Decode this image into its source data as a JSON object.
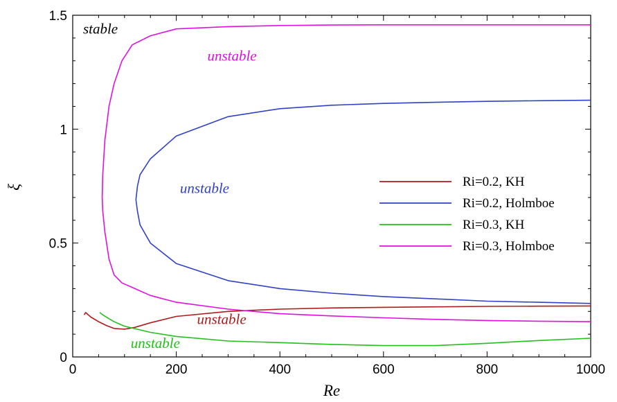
{
  "chart_data": {
    "type": "line",
    "xlabel": "Re",
    "ylabel": "ξ",
    "xlim": [
      0,
      1000
    ],
    "ylim": [
      0,
      1.5
    ],
    "xticks": [
      "0",
      "200",
      "400",
      "600",
      "800",
      "1000"
    ],
    "yticks": [
      "0",
      "0.5",
      "1",
      "1.5"
    ],
    "grid": false,
    "legend_position": "center-right",
    "series": [
      {
        "name": "Ri=0.2, KH",
        "color": "#b01a1a",
        "x": [
          22,
          25,
          35,
          50,
          65,
          80,
          100,
          120,
          150,
          200,
          300,
          400,
          500,
          600,
          700,
          800,
          900,
          1000
        ],
        "y": [
          0.185,
          0.195,
          0.175,
          0.155,
          0.138,
          0.125,
          0.122,
          0.13,
          0.15,
          0.178,
          0.2,
          0.21,
          0.215,
          0.218,
          0.22,
          0.222,
          0.223,
          0.224
        ]
      },
      {
        "name": "Ri=0.2, Holmboe",
        "color": "#3040c8",
        "x": [
          1000,
          900,
          800,
          700,
          600,
          500,
          400,
          300,
          200,
          150,
          130,
          125,
          122,
          125,
          130,
          150,
          200,
          300,
          400,
          500,
          600,
          700,
          800,
          900,
          1000
        ],
        "y": [
          0.235,
          0.24,
          0.245,
          0.255,
          0.265,
          0.28,
          0.3,
          0.335,
          0.41,
          0.5,
          0.58,
          0.64,
          0.69,
          0.75,
          0.8,
          0.87,
          0.97,
          1.055,
          1.09,
          1.105,
          1.113,
          1.118,
          1.122,
          1.125,
          1.127
        ]
      },
      {
        "name": "Ri=0.3, KH",
        "color": "#22c11a",
        "x": [
          52,
          60,
          70,
          80,
          100,
          150,
          200,
          300,
          400,
          500,
          600,
          700,
          800,
          900,
          1000
        ],
        "y": [
          0.195,
          0.182,
          0.168,
          0.155,
          0.135,
          0.108,
          0.09,
          0.07,
          0.063,
          0.055,
          0.05,
          0.05,
          0.06,
          0.072,
          0.082
        ]
      },
      {
        "name": "Ri=0.3, Holmboe",
        "color": "#e010e0",
        "x": [
          1000,
          900,
          800,
          700,
          600,
          500,
          400,
          300,
          200,
          150,
          120,
          95,
          80,
          70,
          62,
          58,
          57,
          58,
          62,
          70,
          80,
          95,
          115,
          150,
          200,
          300,
          400,
          500,
          600,
          700,
          800,
          900,
          1000
        ],
        "y": [
          0.155,
          0.157,
          0.16,
          0.165,
          0.172,
          0.18,
          0.19,
          0.21,
          0.24,
          0.27,
          0.3,
          0.325,
          0.36,
          0.43,
          0.55,
          0.64,
          0.7,
          0.8,
          0.95,
          1.1,
          1.2,
          1.3,
          1.37,
          1.41,
          1.44,
          1.45,
          1.455,
          1.457,
          1.458,
          1.458,
          1.458,
          1.458,
          1.458
        ]
      }
    ],
    "annotations": [
      {
        "text": "stable",
        "x": 20,
        "y": 1.42,
        "color": "#000000"
      },
      {
        "text": "unstable",
        "x": 260,
        "y": 1.3,
        "color": "#e010e0"
      },
      {
        "text": "unstable",
        "x": 207,
        "y": 0.72,
        "color": "#3040c8"
      },
      {
        "text": "unstable",
        "x": 240,
        "y": 0.145,
        "color": "#b01a1a"
      },
      {
        "text": "unstable",
        "x": 112,
        "y": 0.04,
        "color": "#22c11a"
      }
    ]
  }
}
